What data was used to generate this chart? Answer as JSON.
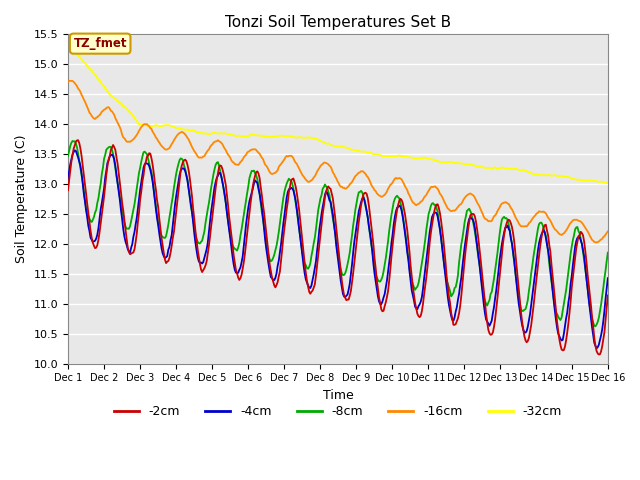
{
  "title": "Tonzi Soil Temperatures Set B",
  "xlabel": "Time",
  "ylabel": "Soil Temperature (C)",
  "ylim": [
    10.0,
    15.5
  ],
  "tick_labels": [
    "Dec 1",
    "Dec 2",
    "Dec 3",
    "Dec 4",
    "Dec 5",
    "Dec 6",
    "Dec 7",
    "Dec 8",
    "Dec 9",
    "Dec 10",
    "Dec 11",
    "Dec 12",
    "Dec 13",
    "Dec 14",
    "Dec 15",
    "Dec 16"
  ],
  "colors": {
    "-2cm": "#cc0000",
    "-4cm": "#0000cc",
    "-8cm": "#00aa00",
    "-16cm": "#ff8800",
    "-32cm": "#ffff00"
  },
  "legend_label": "TZ_fmet",
  "bg_color": "#e8e8e8",
  "n_points": 480
}
